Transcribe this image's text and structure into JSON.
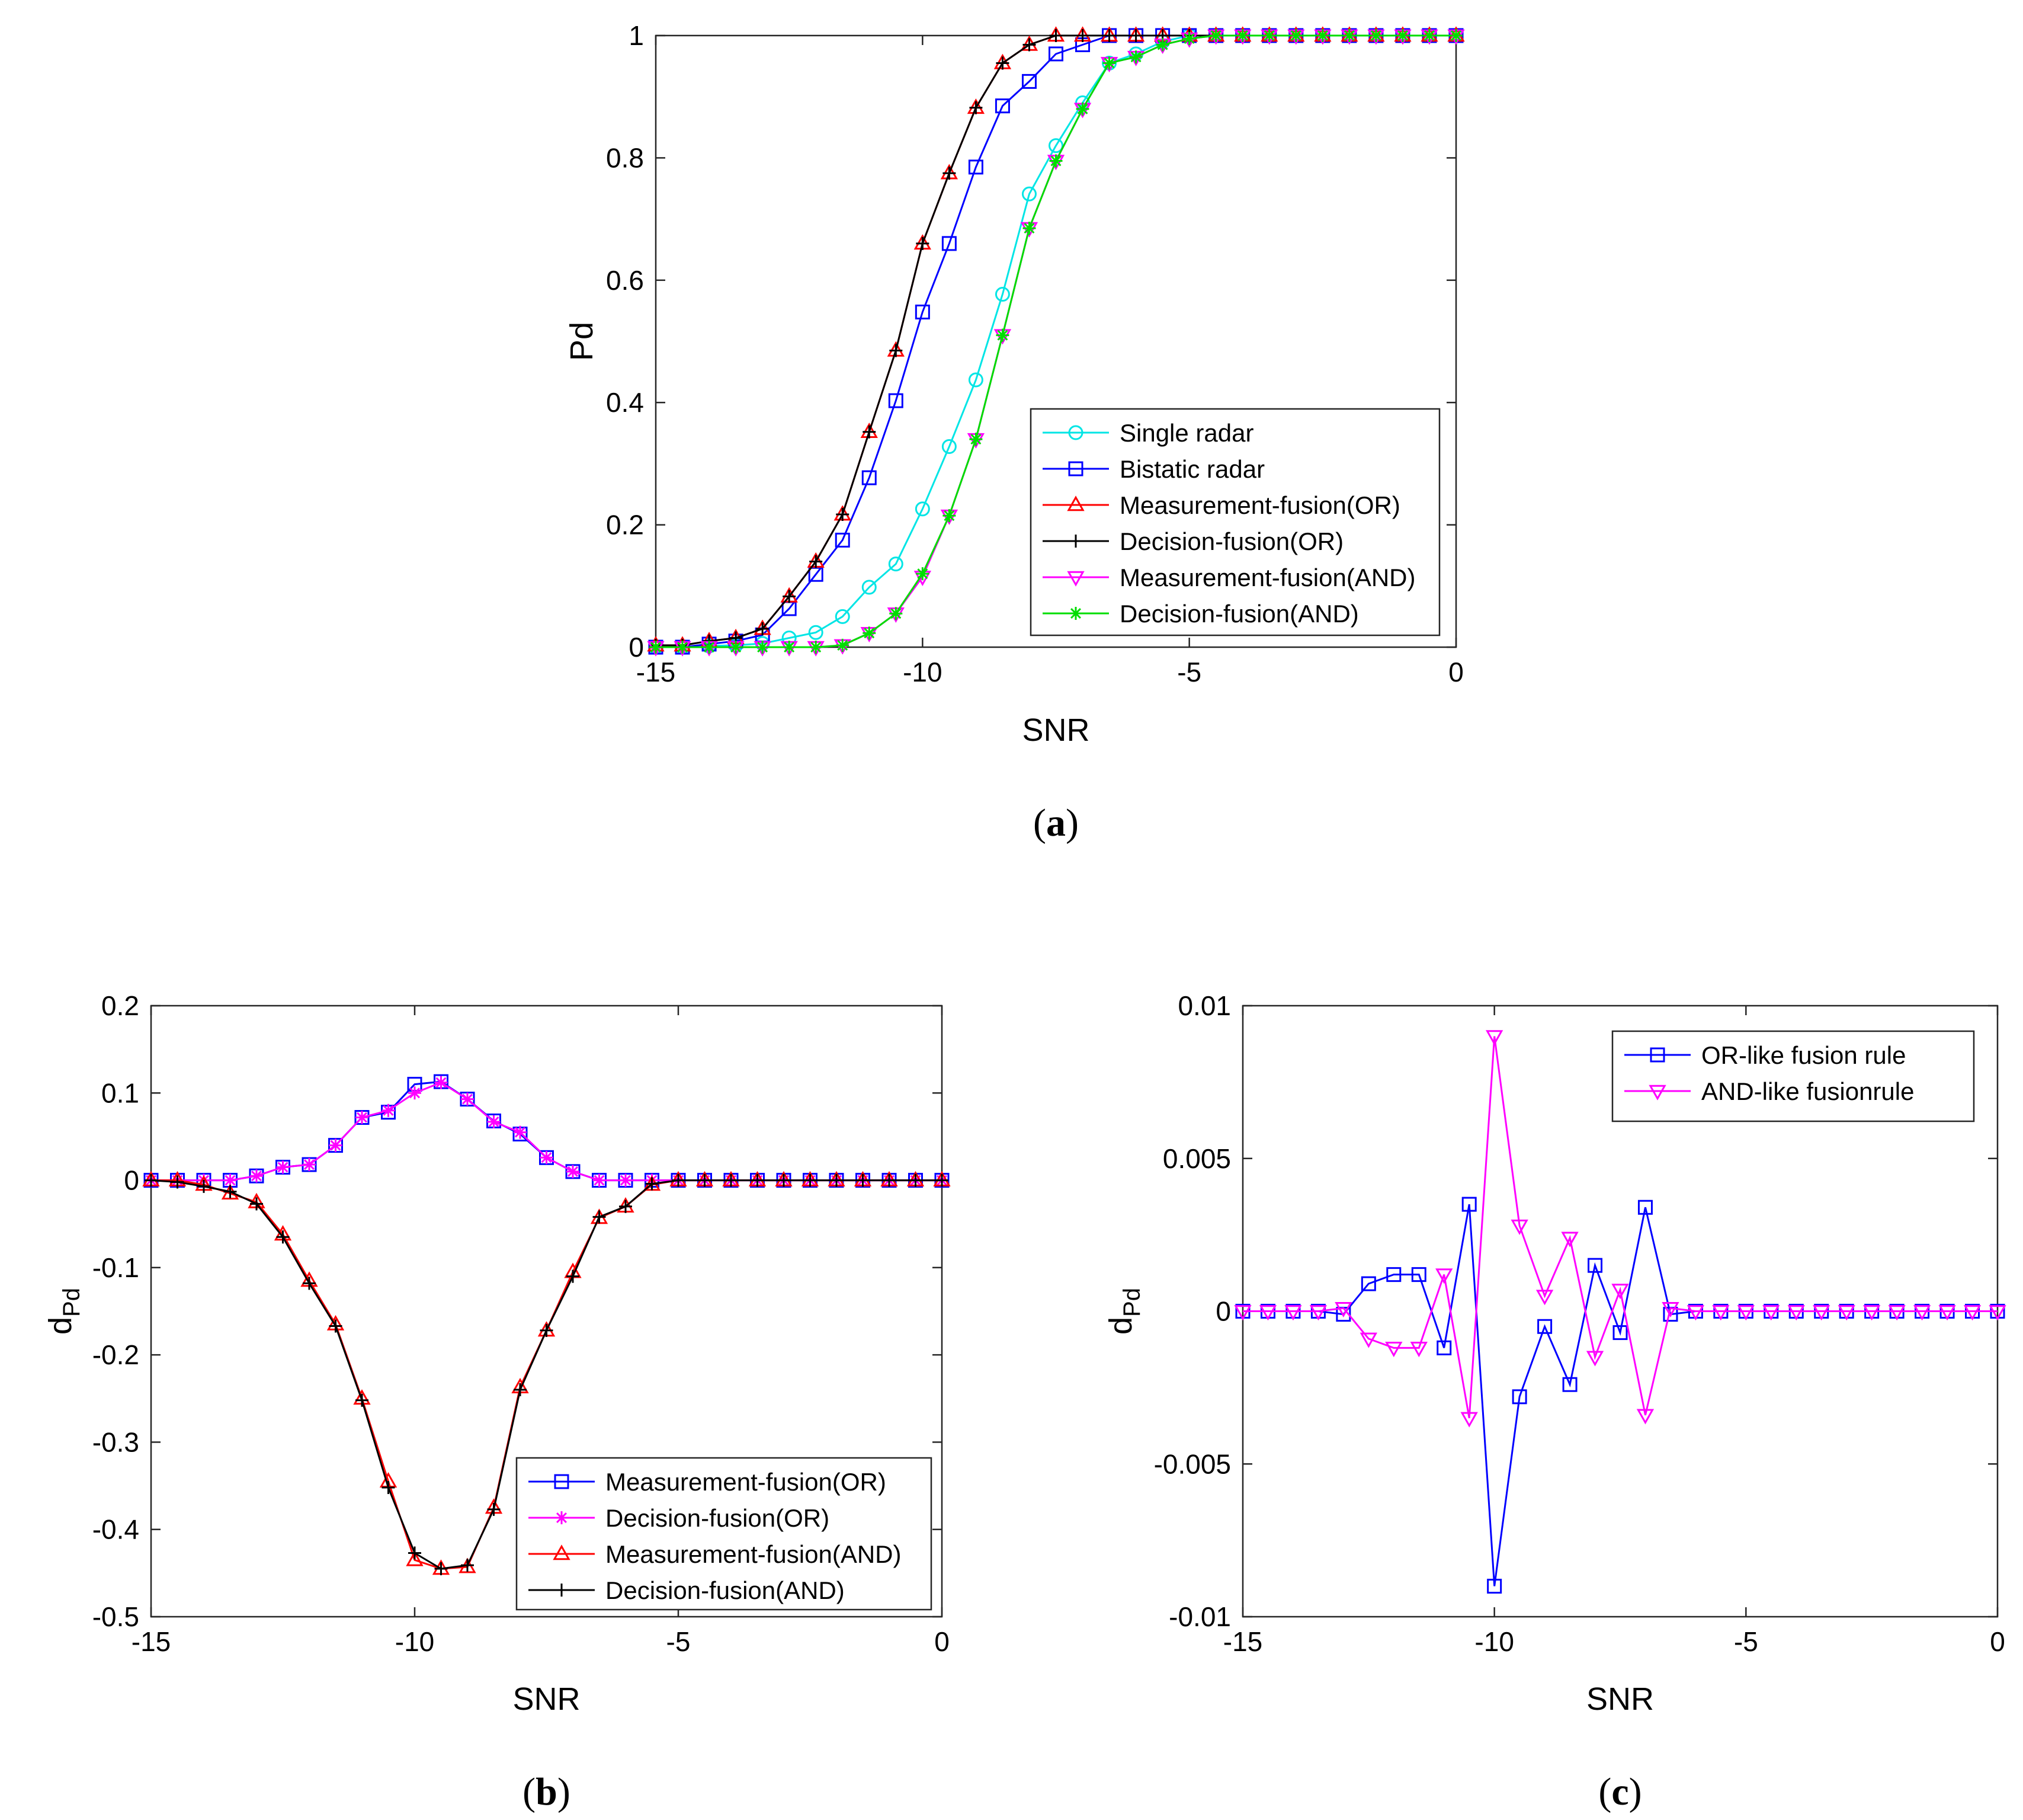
{
  "chart_data": [
    {
      "type": "line",
      "panel_label": "(a)",
      "panel_letter": "a",
      "xlabel": "SNR",
      "ylabel": "Pd",
      "xlim": [
        -15,
        0
      ],
      "ylim": [
        0,
        1
      ],
      "xticks": [
        -15,
        -10,
        -5,
        0
      ],
      "yticks": [
        0,
        0.2,
        0.4,
        0.6,
        0.8,
        1
      ],
      "xtick_labels": [
        "-15",
        "-10",
        "-5",
        "0"
      ],
      "ytick_labels": [
        "0",
        "0.2",
        "0.4",
        "0.6",
        "0.8",
        "1"
      ],
      "legend_position": "bottom-right",
      "x": [
        -15,
        -14.5,
        -14,
        -13.5,
        -13,
        -12.5,
        -12,
        -11.5,
        -11,
        -10.5,
        -10,
        -9.5,
        -9,
        -8.5,
        -8,
        -7.5,
        -7,
        -6.5,
        -6,
        -5.5,
        -5,
        -4.5,
        -4,
        -3.5,
        -3,
        -2.5,
        -2,
        -1.5,
        -1,
        -0.5,
        0
      ],
      "series": [
        {
          "name": "Single radar",
          "color": "#00e5e5",
          "marker": "circle",
          "values": [
            0,
            0,
            0.002,
            0.003,
            0.006,
            0.015,
            0.024,
            0.05,
            0.098,
            0.136,
            0.226,
            0.328,
            0.437,
            0.577,
            0.741,
            0.82,
            0.89,
            0.955,
            0.97,
            0.99,
            1,
            1,
            1,
            1,
            1,
            1,
            1,
            1,
            1,
            1,
            1
          ]
        },
        {
          "name": "Bistatic radar",
          "color": "#0000ff",
          "marker": "square",
          "values": [
            0,
            0,
            0.005,
            0.01,
            0.02,
            0.063,
            0.119,
            0.175,
            0.277,
            0.403,
            0.548,
            0.66,
            0.785,
            0.885,
            0.925,
            0.97,
            0.985,
            1,
            1,
            1,
            1,
            1,
            1,
            1,
            1,
            1,
            1,
            1,
            1,
            1,
            1
          ]
        },
        {
          "name": "Measurement-fusion(OR)",
          "color": "#ff0000",
          "marker": "triangle-up",
          "values": [
            0.003,
            0.003,
            0.01,
            0.015,
            0.03,
            0.083,
            0.14,
            0.217,
            0.352,
            0.485,
            0.66,
            0.775,
            0.882,
            0.955,
            0.985,
            1,
            1,
            1,
            1,
            1,
            1,
            1,
            1,
            1,
            1,
            1,
            1,
            1,
            1,
            1,
            1
          ]
        },
        {
          "name": "Decision-fusion(OR)",
          "color": "#000000",
          "marker": "plus",
          "values": [
            0.003,
            0.003,
            0.01,
            0.015,
            0.03,
            0.083,
            0.14,
            0.217,
            0.352,
            0.485,
            0.66,
            0.775,
            0.882,
            0.955,
            0.985,
            1,
            1,
            1,
            1,
            1,
            1,
            1,
            1,
            1,
            1,
            1,
            1,
            1,
            1,
            1,
            1
          ]
        },
        {
          "name": "Measurement-fusion(AND)",
          "color": "#ff00ff",
          "marker": "triangle-down",
          "values": [
            0,
            0,
            0,
            0,
            0,
            0,
            0,
            0.003,
            0.023,
            0.055,
            0.115,
            0.215,
            0.34,
            0.51,
            0.685,
            0.795,
            0.88,
            0.955,
            0.965,
            0.985,
            0.995,
            1,
            1,
            1,
            1,
            1,
            1,
            1,
            1,
            1,
            1
          ]
        },
        {
          "name": "Decision-fusion(AND)",
          "color": "#00dd00",
          "marker": "star",
          "values": [
            0,
            0,
            0,
            0,
            0,
            0,
            0,
            0.003,
            0.023,
            0.055,
            0.12,
            0.215,
            0.34,
            0.51,
            0.685,
            0.795,
            0.88,
            0.955,
            0.965,
            0.985,
            0.995,
            1,
            1,
            1,
            1,
            1,
            1,
            1,
            1,
            1,
            1
          ]
        }
      ]
    },
    {
      "type": "line",
      "panel_label": "(b)",
      "panel_letter": "b",
      "xlabel": "SNR",
      "ylabel_main": "d",
      "ylabel_sub": "Pd",
      "xlim": [
        -15,
        0
      ],
      "ylim": [
        -0.5,
        0.2
      ],
      "xticks": [
        -15,
        -10,
        -5,
        0
      ],
      "yticks": [
        -0.5,
        -0.4,
        -0.3,
        -0.2,
        -0.1,
        0,
        0.1,
        0.2
      ],
      "xtick_labels": [
        "-15",
        "-10",
        "-5",
        "0"
      ],
      "ytick_labels": [
        "-0.5",
        "-0.4",
        "-0.3",
        "-0.2",
        "-0.1",
        "0",
        "0.1",
        "0.2"
      ],
      "legend_position": "bottom-right",
      "x": [
        -15,
        -14.5,
        -14,
        -13.5,
        -13,
        -12.5,
        -12,
        -11.5,
        -11,
        -10.5,
        -10,
        -9.5,
        -9,
        -8.5,
        -8,
        -7.5,
        -7,
        -6.5,
        -6,
        -5.5,
        -5,
        -4.5,
        -4,
        -3.5,
        -3,
        -2.5,
        -2,
        -1.5,
        -1,
        -0.5,
        0
      ],
      "series": [
        {
          "name": "Measurement-fusion(OR)",
          "color": "#0000ff",
          "marker": "square",
          "values": [
            0,
            0,
            0,
            0,
            0.005,
            0.015,
            0.018,
            0.04,
            0.072,
            0.078,
            0.11,
            0.113,
            0.093,
            0.068,
            0.053,
            0.026,
            0.01,
            0,
            0,
            0,
            0,
            0,
            0,
            0,
            0,
            0,
            0,
            0,
            0,
            0,
            0
          ]
        },
        {
          "name": "Decision-fusion(OR)",
          "color": "#ff00ff",
          "marker": "star",
          "values": [
            0,
            0,
            0,
            0,
            0.005,
            0.015,
            0.018,
            0.04,
            0.072,
            0.08,
            0.1,
            0.112,
            0.093,
            0.067,
            0.055,
            0.026,
            0.01,
            0,
            0,
            0,
            0,
            0,
            0,
            0,
            0,
            0,
            0,
            0,
            0,
            0,
            0
          ]
        },
        {
          "name": "Measurement-fusion(AND)",
          "color": "#ff0000",
          "marker": "triangle-up",
          "values": [
            0,
            0,
            -0.005,
            -0.015,
            -0.025,
            -0.062,
            -0.115,
            -0.165,
            -0.25,
            -0.345,
            -0.435,
            -0.445,
            -0.443,
            -0.375,
            -0.237,
            -0.172,
            -0.105,
            -0.043,
            -0.03,
            -0.005,
            0,
            0,
            0,
            0,
            0,
            0,
            0,
            0,
            0,
            0,
            0
          ]
        },
        {
          "name": "Decision-fusion(AND)",
          "color": "#000000",
          "marker": "plus",
          "values": [
            0,
            -0.002,
            -0.007,
            -0.013,
            -0.027,
            -0.065,
            -0.118,
            -0.167,
            -0.252,
            -0.352,
            -0.427,
            -0.445,
            -0.441,
            -0.377,
            -0.24,
            -0.172,
            -0.11,
            -0.042,
            -0.03,
            -0.004,
            0,
            0,
            0,
            0,
            0,
            0,
            0,
            0,
            0,
            0,
            0
          ]
        }
      ]
    },
    {
      "type": "line",
      "panel_label": "(c)",
      "panel_letter": "c",
      "xlabel": "SNR",
      "ylabel_main": "d",
      "ylabel_sub": "Pd",
      "xlim": [
        -15,
        0
      ],
      "ylim": [
        -0.01,
        0.01
      ],
      "xticks": [
        -15,
        -10,
        -5,
        0
      ],
      "yticks": [
        -0.01,
        -0.005,
        0,
        0.005,
        0.01
      ],
      "xtick_labels": [
        "-15",
        "-10",
        "-5",
        "0"
      ],
      "ytick_labels": [
        "-0.01",
        "-0.005",
        "0",
        "0.005",
        "0.01"
      ],
      "legend_position": "top-right",
      "x": [
        -15,
        -14.5,
        -14,
        -13.5,
        -13,
        -12.5,
        -12,
        -11.5,
        -11,
        -10.5,
        -10,
        -9.5,
        -9,
        -8.5,
        -8,
        -7.5,
        -7,
        -6.5,
        -6,
        -5.5,
        -5,
        -4.5,
        -4,
        -3.5,
        -3,
        -2.5,
        -2,
        -1.5,
        -1,
        -0.5,
        0
      ],
      "series": [
        {
          "name": "OR-like fusion rule",
          "color": "#0000ff",
          "marker": "square",
          "values": [
            0,
            0,
            0,
            0,
            -0.0001,
            0.0009,
            0.0012,
            0.0012,
            -0.0012,
            0.0035,
            -0.009,
            -0.0028,
            -0.0005,
            -0.0024,
            0.0015,
            -0.0007,
            0.0034,
            -0.0001,
            0,
            0,
            0,
            0,
            0,
            0,
            0,
            0,
            0,
            0,
            0,
            0,
            0
          ]
        },
        {
          "name": "AND-like fusionrule",
          "color": "#ff00ff",
          "marker": "triangle-down",
          "values": [
            0,
            0,
            0,
            0,
            0.0001,
            -0.0009,
            -0.0012,
            -0.0012,
            0.0012,
            -0.0035,
            0.009,
            0.0028,
            0.0005,
            0.0024,
            -0.0015,
            0.0007,
            -0.0034,
            0.0001,
            0,
            0,
            0,
            0,
            0,
            0,
            0,
            0,
            0,
            0,
            0,
            0,
            0
          ]
        }
      ]
    }
  ]
}
